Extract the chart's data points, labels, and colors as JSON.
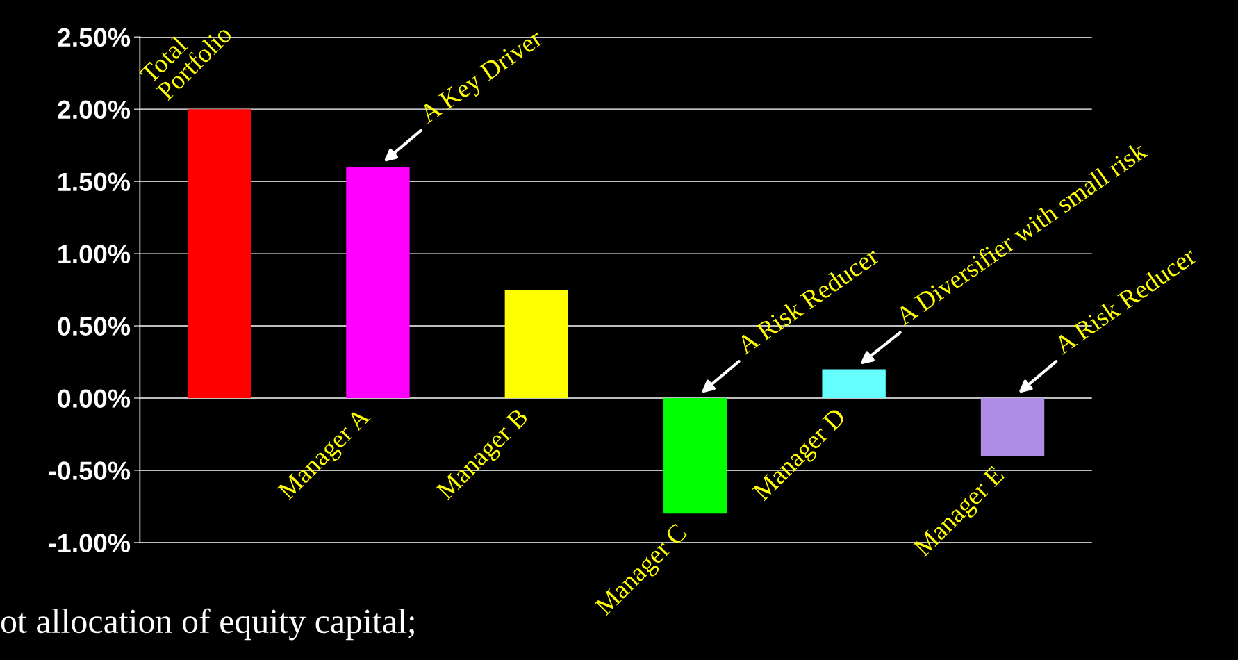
{
  "chart_data": {
    "type": "bar",
    "categories": [
      "Total Portfolio",
      "Manager A",
      "Manager B",
      "Manager C",
      "Manager D",
      "Manager E"
    ],
    "values": [
      2.0,
      1.6,
      0.75,
      -0.8,
      0.2,
      -0.4
    ],
    "colors": [
      "#ff0000",
      "#ff00ff",
      "#ffff00",
      "#00ff00",
      "#66ffff",
      "#b08ee8"
    ],
    "ylim": [
      -1.0,
      2.5
    ],
    "yticks": [
      {
        "value": -1.0,
        "label": "-1.00%"
      },
      {
        "value": -0.5,
        "label": "-0.50%"
      },
      {
        "value": 0,
        "label": "0.00%"
      },
      {
        "value": 0.5,
        "label": "0.50%"
      },
      {
        "value": 1.0,
        "label": "1.00%"
      },
      {
        "value": 1.5,
        "label": "1.50%"
      },
      {
        "value": 2.0,
        "label": "2.00%"
      },
      {
        "value": 2.5,
        "label": "2.50%"
      }
    ],
    "grid": "y",
    "annotations": [
      {
        "text": "A Key Driver",
        "x": "Manager A",
        "y": 1.6
      },
      {
        "text": "A Risk Reducer",
        "x": "Manager C",
        "y": 0
      },
      {
        "text": "A Diversifier with small risk",
        "x": "Manager D",
        "y": 0.2
      },
      {
        "text": "A Risk Reducer",
        "x": "Manager E",
        "y": 0
      },
      "ot allocation of equity capital;"
    ]
  }
}
